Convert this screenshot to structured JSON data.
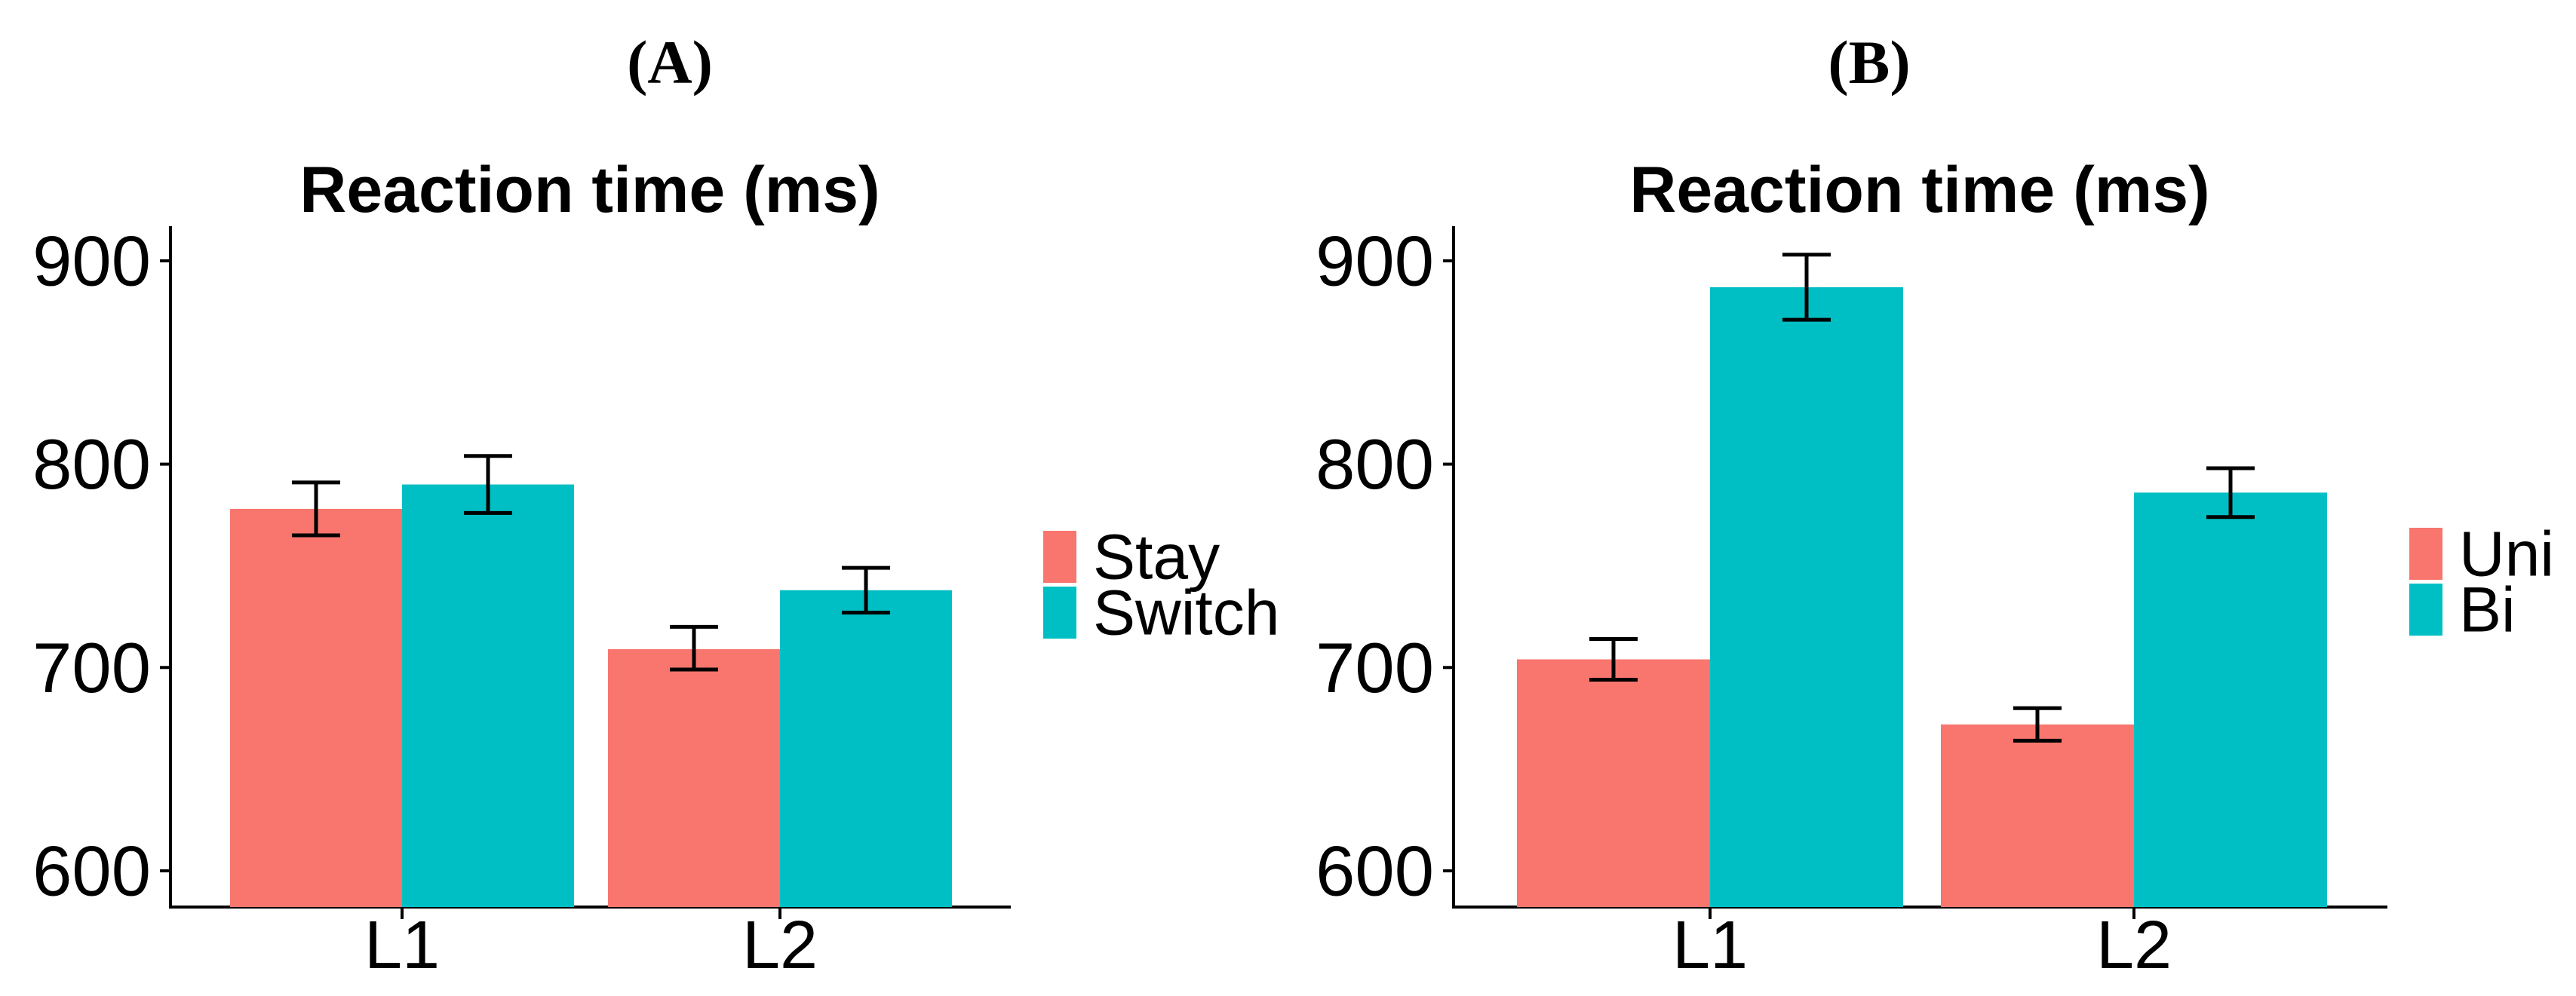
{
  "figure": {
    "background": "#ffffff",
    "axis_color": "#000000",
    "error_bar_color": "#000000"
  },
  "chart_data": [
    {
      "type": "bar",
      "panel_label": "(A)",
      "title": "Reaction time (ms)",
      "categories": [
        "L1",
        "L2"
      ],
      "series": [
        {
          "name": "Stay",
          "color": "#F8766D",
          "values": [
            778,
            709
          ],
          "error_low": [
            765,
            699
          ],
          "error_high": [
            791,
            720
          ]
        },
        {
          "name": "Switch",
          "color": "#00BFC4",
          "values": [
            790,
            738
          ],
          "error_low": [
            776,
            727
          ],
          "error_high": [
            804,
            749
          ]
        }
      ],
      "yticks": [
        900,
        800,
        700,
        600
      ],
      "ylim": [
        582,
        917
      ],
      "xlabel": "",
      "ylabel": "",
      "grid": false,
      "error_bars": true,
      "legend_position": "right"
    },
    {
      "type": "bar",
      "panel_label": "(B)",
      "title": "Reaction time (ms)",
      "categories": [
        "L1",
        "L2"
      ],
      "series": [
        {
          "name": "Uni",
          "color": "#F8766D",
          "values": [
            704,
            672
          ],
          "error_low": [
            694,
            664
          ],
          "error_high": [
            714,
            680
          ]
        },
        {
          "name": "Bi",
          "color": "#00BFC4",
          "values": [
            887,
            786
          ],
          "error_low": [
            871,
            774
          ],
          "error_high": [
            903,
            798
          ]
        }
      ],
      "yticks": [
        900,
        800,
        700,
        600
      ],
      "ylim": [
        582,
        917
      ],
      "xlabel": "",
      "ylabel": "",
      "grid": false,
      "error_bars": true,
      "legend_position": "right"
    }
  ]
}
